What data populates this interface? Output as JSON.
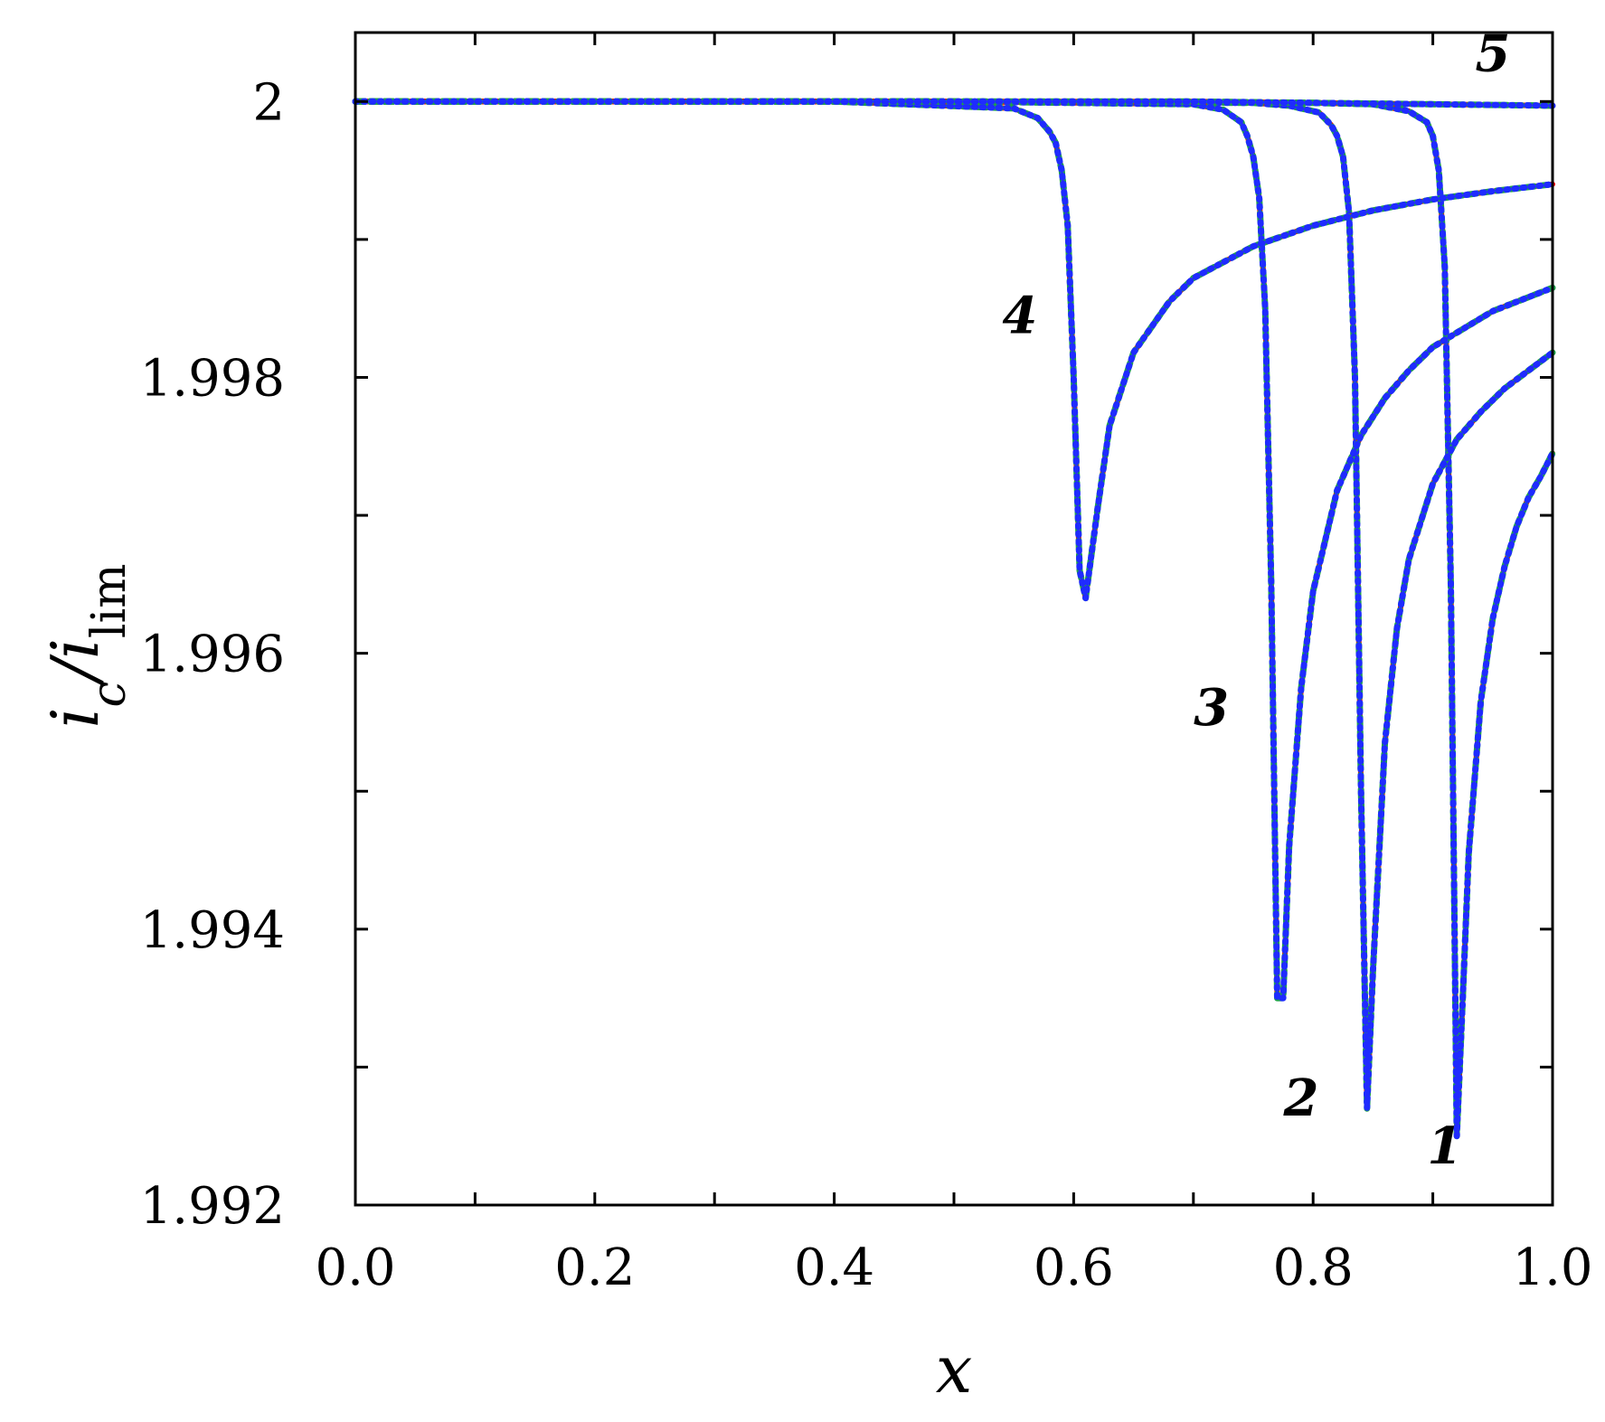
{
  "chart_data": {
    "type": "line",
    "title": "",
    "xlabel": "x",
    "ylabel": {
      "main": "i",
      "sub1": "c",
      "sep": "/",
      "main2": "i",
      "sub2": "lim"
    },
    "xlim": [
      0.0,
      1.0
    ],
    "ylim": [
      1.992,
      2.0005
    ],
    "xticks": [
      0.0,
      0.1,
      0.2,
      0.3,
      0.4,
      0.5,
      0.6,
      0.7,
      0.8,
      0.9,
      1.0
    ],
    "xtick_labels": [
      "0.0",
      "",
      "0.2",
      "",
      "0.4",
      "",
      "0.6",
      "",
      "0.8",
      "",
      "1.0"
    ],
    "yticks": [
      1.992,
      1.993,
      1.994,
      1.995,
      1.996,
      1.997,
      1.998,
      1.999,
      2.0
    ],
    "ytick_labels": [
      "1.992",
      "",
      "1.994",
      "",
      "1.996",
      "",
      "1.998",
      "",
      "2"
    ],
    "grid": false,
    "colors": {
      "red": "#ff0000",
      "green": "#1fa14a",
      "blue": "#1f2bff",
      "axis": "#000000"
    },
    "line_styles": [
      {
        "color": "#ff0000",
        "style": "solid"
      },
      {
        "color": "#1fa14a",
        "style": "dashed"
      },
      {
        "color": "#1f2bff",
        "style": "dotted"
      }
    ],
    "series": [
      {
        "label": "1",
        "x": [
          0.0,
          0.5,
          0.8,
          0.85,
          0.88,
          0.895,
          0.9,
          0.905,
          0.91,
          0.915,
          0.92,
          0.925,
          0.93,
          0.94,
          0.95,
          0.96,
          0.97,
          0.98,
          0.99,
          1.0
        ],
        "y": [
          2.0,
          2.0,
          1.99999,
          1.99998,
          1.99993,
          1.99985,
          1.99975,
          1.9995,
          1.9988,
          1.9965,
          1.9925,
          1.9935,
          1.99455,
          1.99565,
          1.99625,
          1.99663,
          1.99692,
          1.99713,
          1.99728,
          1.99745
        ]
      },
      {
        "label": "2",
        "x": [
          0.0,
          0.5,
          0.75,
          0.78,
          0.805,
          0.815,
          0.82,
          0.825,
          0.83,
          0.835,
          0.84,
          0.845,
          0.85,
          0.86,
          0.87,
          0.88,
          0.9,
          0.92,
          0.94,
          0.96,
          0.98,
          1.0
        ],
        "y": [
          2.0,
          2.0,
          1.99999,
          1.99997,
          1.99992,
          1.99983,
          1.99975,
          1.9996,
          1.9992,
          1.998,
          1.995,
          1.9927,
          1.9937,
          1.99535,
          1.99618,
          1.99668,
          1.99723,
          1.99755,
          1.99775,
          1.99792,
          1.99805,
          1.99818
        ]
      },
      {
        "label": "3",
        "x": [
          0.0,
          0.5,
          0.7,
          0.725,
          0.74,
          0.745,
          0.75,
          0.755,
          0.76,
          0.765,
          0.77,
          0.775,
          0.78,
          0.79,
          0.8,
          0.82,
          0.84,
          0.86,
          0.88,
          0.9,
          0.95,
          1.0
        ],
        "y": [
          2.0,
          2.0,
          1.99998,
          1.99994,
          1.99985,
          1.99975,
          1.9996,
          1.9993,
          1.9985,
          1.9965,
          1.9935,
          1.9935,
          1.9946,
          1.99575,
          1.99645,
          1.99718,
          1.99758,
          1.99785,
          1.99805,
          1.99822,
          1.99848,
          1.99865
        ]
      },
      {
        "label": "4",
        "x": [
          0.0,
          0.4,
          0.55,
          0.57,
          0.58,
          0.585,
          0.59,
          0.595,
          0.6,
          0.605,
          0.61,
          0.62,
          0.63,
          0.65,
          0.68,
          0.7,
          0.75,
          0.8,
          0.85,
          0.9,
          0.95,
          1.0
        ],
        "y": [
          2.0,
          2.0,
          1.99995,
          1.99988,
          1.99978,
          1.9997,
          1.9995,
          1.9991,
          1.998,
          1.9966,
          1.9964,
          1.99705,
          1.99765,
          1.99818,
          1.99855,
          1.99872,
          1.99895,
          1.9991,
          1.99921,
          1.99929,
          1.99935,
          1.9994
        ]
      },
      {
        "label": "5",
        "x": [
          0.0,
          0.5,
          0.7,
          0.8,
          0.9,
          1.0
        ],
        "y": [
          2.0,
          2.0,
          2.0,
          1.99999,
          1.99998,
          1.99997
        ]
      }
    ],
    "annotations": [
      "1",
      "2",
      "3",
      "4",
      "5"
    ]
  }
}
